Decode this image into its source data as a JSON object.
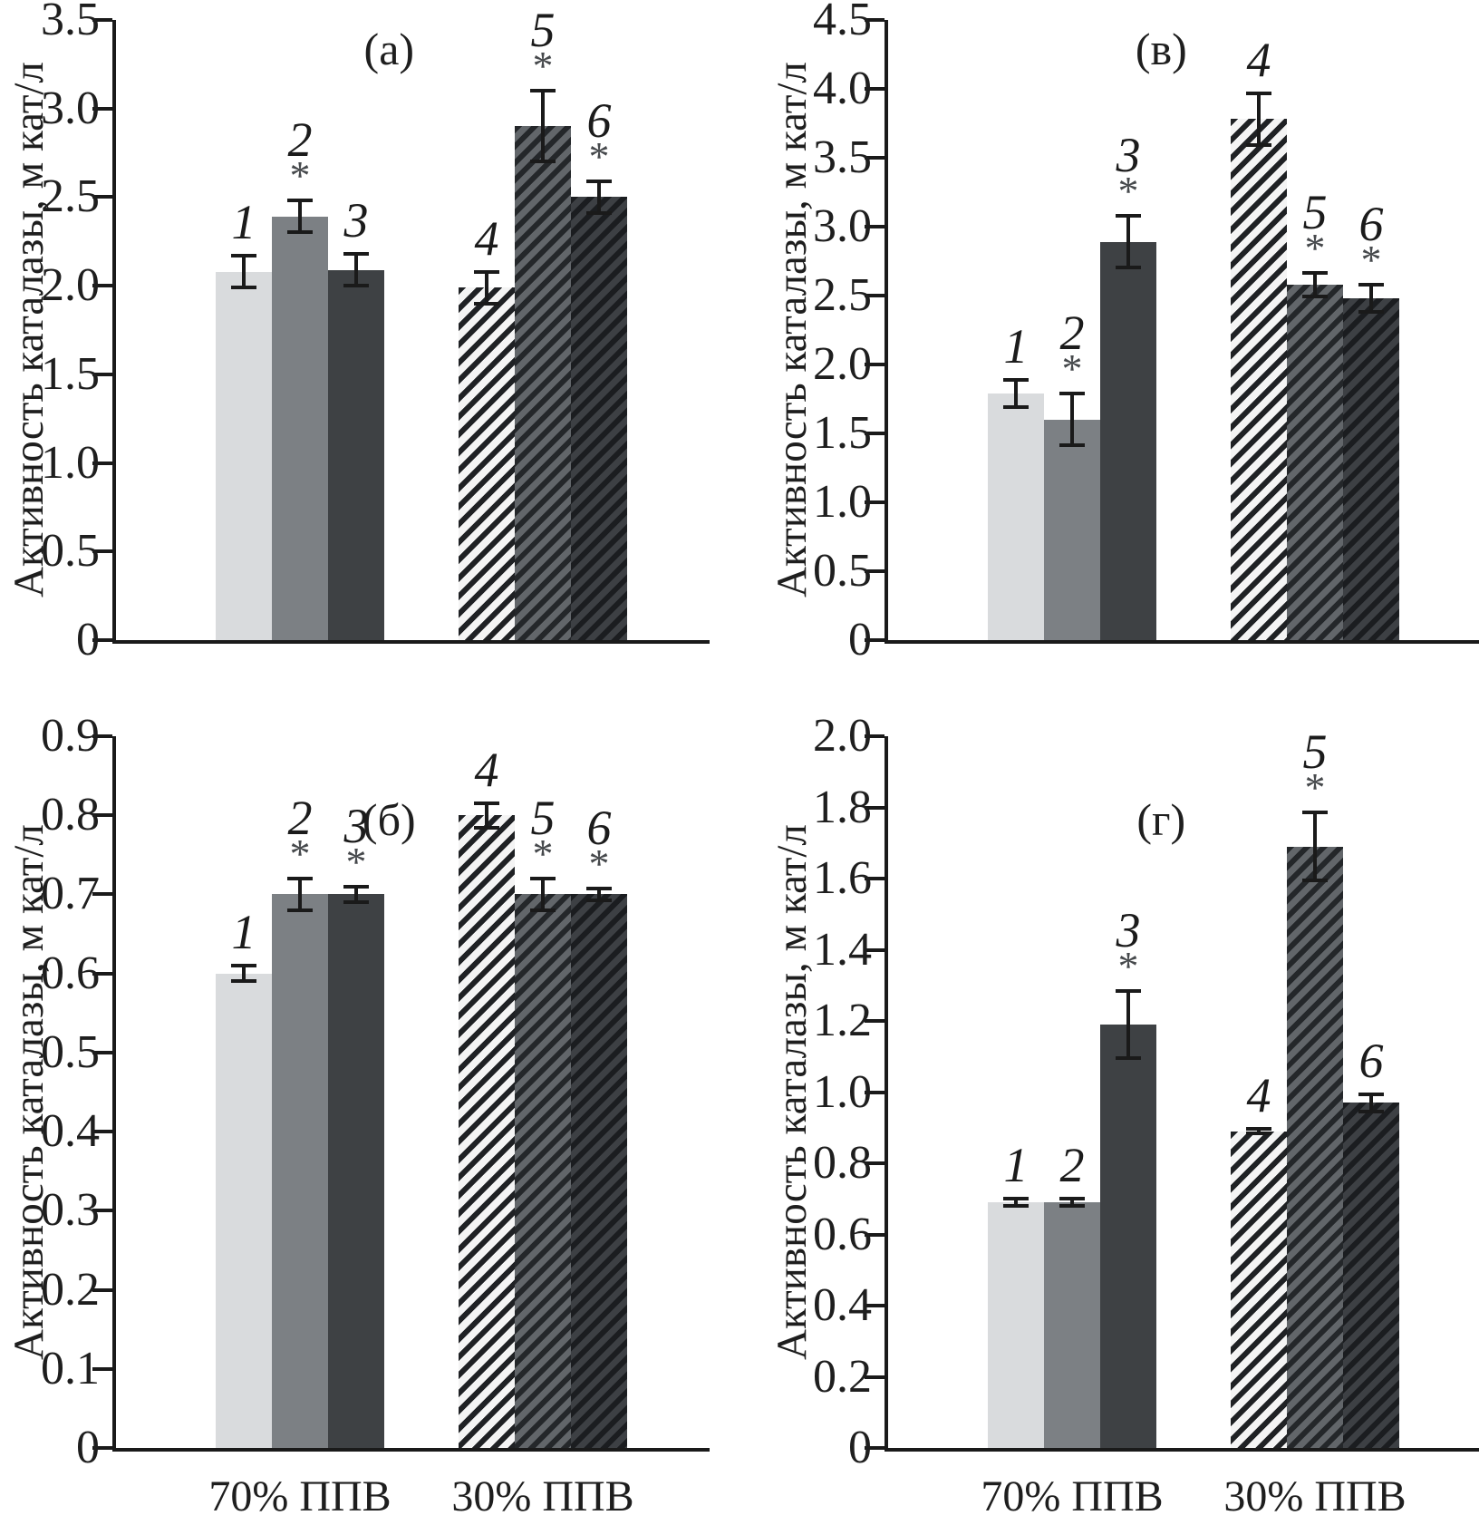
{
  "figure": {
    "background": "#ffffff",
    "text_color": "#1e1e1e",
    "axis_color": "#1a1a1a",
    "grid": "off",
    "legend": "none"
  },
  "bar_styles": [
    {
      "id": 1,
      "type": "solid",
      "color": "#d9dbdd",
      "description": "light gray"
    },
    {
      "id": 2,
      "type": "solid",
      "color": "#7c8084",
      "description": "medium gray"
    },
    {
      "id": 3,
      "type": "solid",
      "color": "#3e4144",
      "description": "dark gray"
    },
    {
      "id": 4,
      "type": "hatch-diagonal",
      "bg": "#f4f4f4",
      "stripe": "#1f2124",
      "description": "white with black / stripes"
    },
    {
      "id": 5,
      "type": "hatch-diagonal",
      "bg": "#62666a",
      "stripe": "#24272a",
      "description": "gray with dark / stripes"
    },
    {
      "id": 6,
      "type": "hatch-diagonal",
      "bg": "#3d4044",
      "stripe": "#1b1d20",
      "description": "dark gray with black / stripes"
    }
  ],
  "chart_data": [
    {
      "type": "bar",
      "position": "top-left",
      "panel_label": "(а)",
      "ylabel": "Активность каталазы, м кат/л",
      "ylim": [
        0,
        3.5
      ],
      "ytick_values": [
        0,
        0.5,
        1.0,
        1.5,
        2.0,
        2.5,
        3.0,
        3.5
      ],
      "ytick_labels": [
        "0",
        "0.5",
        "1.0",
        "1.5",
        "2.0",
        "2.5",
        "3.0",
        "3.5"
      ],
      "categories": [
        "70% ППВ",
        "30% ППВ"
      ],
      "show_x_labels": false,
      "bars": [
        {
          "label": "1",
          "group": 1,
          "style": 1,
          "value": 2.08,
          "error": 0.1,
          "asterisk": false
        },
        {
          "label": "2",
          "group": 1,
          "style": 2,
          "value": 2.39,
          "error": 0.1,
          "asterisk": true
        },
        {
          "label": "3",
          "group": 1,
          "style": 3,
          "value": 2.09,
          "error": 0.1,
          "asterisk": false
        },
        {
          "label": "4",
          "group": 2,
          "style": 4,
          "value": 1.99,
          "error": 0.1,
          "asterisk": false
        },
        {
          "label": "5",
          "group": 2,
          "style": 5,
          "value": 2.9,
          "error": 0.21,
          "asterisk": true
        },
        {
          "label": "6",
          "group": 2,
          "style": 6,
          "value": 2.5,
          "error": 0.1,
          "asterisk": true
        }
      ]
    },
    {
      "type": "bar",
      "position": "top-right",
      "panel_label": "(в)",
      "ylabel": "Активность каталазы, м кат/л",
      "ylim": [
        0,
        4.5
      ],
      "ytick_values": [
        0,
        0.5,
        1.0,
        1.5,
        2.0,
        2.5,
        3.0,
        3.5,
        4.0,
        4.5
      ],
      "ytick_labels": [
        "0",
        "0.5",
        "1.0",
        "1.5",
        "2.0",
        "2.5",
        "3.0",
        "3.5",
        "4.0",
        "4.5"
      ],
      "categories": [
        "70% ППВ",
        "30% ППВ"
      ],
      "show_x_labels": false,
      "bars": [
        {
          "label": "1",
          "group": 1,
          "style": 1,
          "value": 1.79,
          "error": 0.11,
          "asterisk": false
        },
        {
          "label": "2",
          "group": 1,
          "style": 2,
          "value": 1.6,
          "error": 0.2,
          "asterisk": true
        },
        {
          "label": "3",
          "group": 1,
          "style": 3,
          "value": 2.89,
          "error": 0.2,
          "asterisk": true
        },
        {
          "label": "4",
          "group": 2,
          "style": 4,
          "value": 3.78,
          "error": 0.2,
          "asterisk": false
        },
        {
          "label": "5",
          "group": 2,
          "style": 5,
          "value": 2.58,
          "error": 0.1,
          "asterisk": true
        },
        {
          "label": "6",
          "group": 2,
          "style": 6,
          "value": 2.48,
          "error": 0.11,
          "asterisk": true
        }
      ]
    },
    {
      "type": "bar",
      "position": "bottom-left",
      "panel_label": "(б)",
      "ylabel": "Активность каталазы, м кат/л",
      "ylim": [
        0,
        0.9
      ],
      "ytick_values": [
        0,
        0.1,
        0.2,
        0.3,
        0.4,
        0.5,
        0.6,
        0.7,
        0.8,
        0.9
      ],
      "ytick_labels": [
        "0",
        "0.1",
        "0.2",
        "0.3",
        "0.4",
        "0.5",
        "0.6",
        "0.7",
        "0.8",
        "0.9"
      ],
      "categories": [
        "70% ППВ",
        "30% ППВ"
      ],
      "show_x_labels": true,
      "bars": [
        {
          "label": "1",
          "group": 1,
          "style": 1,
          "value": 0.6,
          "error": 0.012,
          "asterisk": false
        },
        {
          "label": "2",
          "group": 1,
          "style": 2,
          "value": 0.7,
          "error": 0.022,
          "asterisk": true
        },
        {
          "label": "3",
          "group": 1,
          "style": 3,
          "value": 0.7,
          "error": 0.012,
          "asterisk": true
        },
        {
          "label": "4",
          "group": 2,
          "style": 4,
          "value": 0.8,
          "error": 0.018,
          "asterisk": false
        },
        {
          "label": "5",
          "group": 2,
          "style": 5,
          "value": 0.7,
          "error": 0.022,
          "asterisk": true
        },
        {
          "label": "6",
          "group": 2,
          "style": 6,
          "value": 0.7,
          "error": 0.01,
          "asterisk": true
        }
      ]
    },
    {
      "type": "bar",
      "position": "bottom-right",
      "panel_label": "(г)",
      "ylabel": "Активность каталазы, м кат/л",
      "ylim": [
        0,
        2.0
      ],
      "ytick_values": [
        0,
        0.2,
        0.4,
        0.6,
        0.8,
        1.0,
        1.2,
        1.4,
        1.6,
        1.8,
        2.0
      ],
      "ytick_labels": [
        "0",
        "0.2",
        "0.4",
        "0.6",
        "0.8",
        "1.0",
        "1.2",
        "1.4",
        "1.6",
        "1.8",
        "2.0"
      ],
      "categories": [
        "70% ППВ",
        "30% ППВ"
      ],
      "show_x_labels": true,
      "bars": [
        {
          "label": "1",
          "group": 1,
          "style": 1,
          "value": 0.69,
          "error": 0.015,
          "asterisk": false
        },
        {
          "label": "2",
          "group": 1,
          "style": 2,
          "value": 0.69,
          "error": 0.015,
          "asterisk": false
        },
        {
          "label": "3",
          "group": 1,
          "style": 3,
          "value": 1.19,
          "error": 0.1,
          "asterisk": true
        },
        {
          "label": "4",
          "group": 2,
          "style": 4,
          "value": 0.89,
          "error": 0.012,
          "asterisk": false
        },
        {
          "label": "5",
          "group": 2,
          "style": 5,
          "value": 1.69,
          "error": 0.1,
          "asterisk": true
        },
        {
          "label": "6",
          "group": 2,
          "style": 6,
          "value": 0.97,
          "error": 0.03,
          "asterisk": false
        }
      ]
    }
  ]
}
